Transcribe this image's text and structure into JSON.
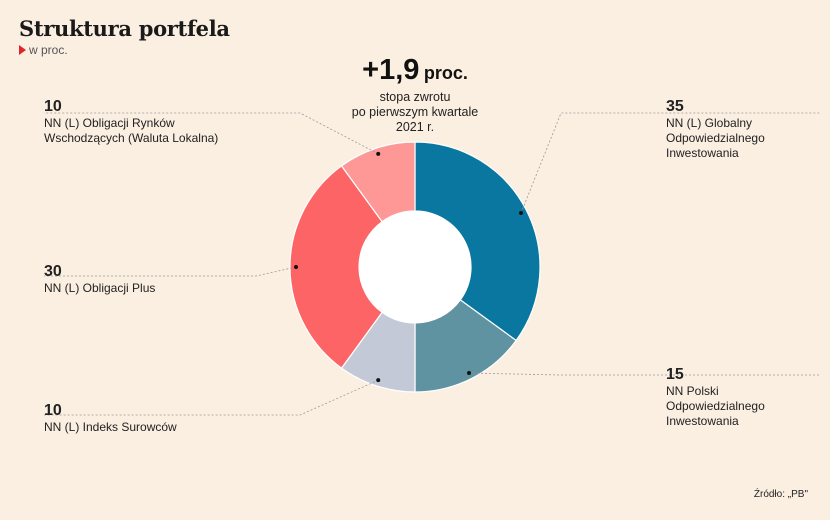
{
  "title": "Struktura portfela",
  "subtitle": "w proc.",
  "headline": {
    "value": "+1,9",
    "unit": "proc.",
    "desc_lines": [
      "stopa zwrotu",
      "po pierwszym kwartale",
      "2021 r."
    ]
  },
  "source": "Źródło: „PB\"",
  "chart_data": {
    "type": "pie",
    "donut": true,
    "slices": [
      {
        "value": 35,
        "label_value": "35",
        "name_lines": [
          "NN (L) Globalny",
          "Odpowiedzialnego",
          "Inwestowania"
        ],
        "color": "#0a77a0"
      },
      {
        "value": 15,
        "label_value": "15",
        "name_lines": [
          "NN Polski",
          "Odpowiedzialnego",
          "Inwestowania"
        ],
        "color": "#5f93a2"
      },
      {
        "value": 10,
        "label_value": "10",
        "name_lines": [
          "NN (L) Indeks Surowców"
        ],
        "color": "#c4c9d8"
      },
      {
        "value": 30,
        "label_value": "30",
        "name_lines": [
          "NN (L) Obligacji Plus"
        ],
        "color": "#fd6466"
      },
      {
        "value": 10,
        "label_value": "10",
        "name_lines": [
          "NN (L) Obligacji Rynków",
          "Wschodzących (Waluta Lokalna)"
        ],
        "color": "#fe9897"
      }
    ]
  }
}
